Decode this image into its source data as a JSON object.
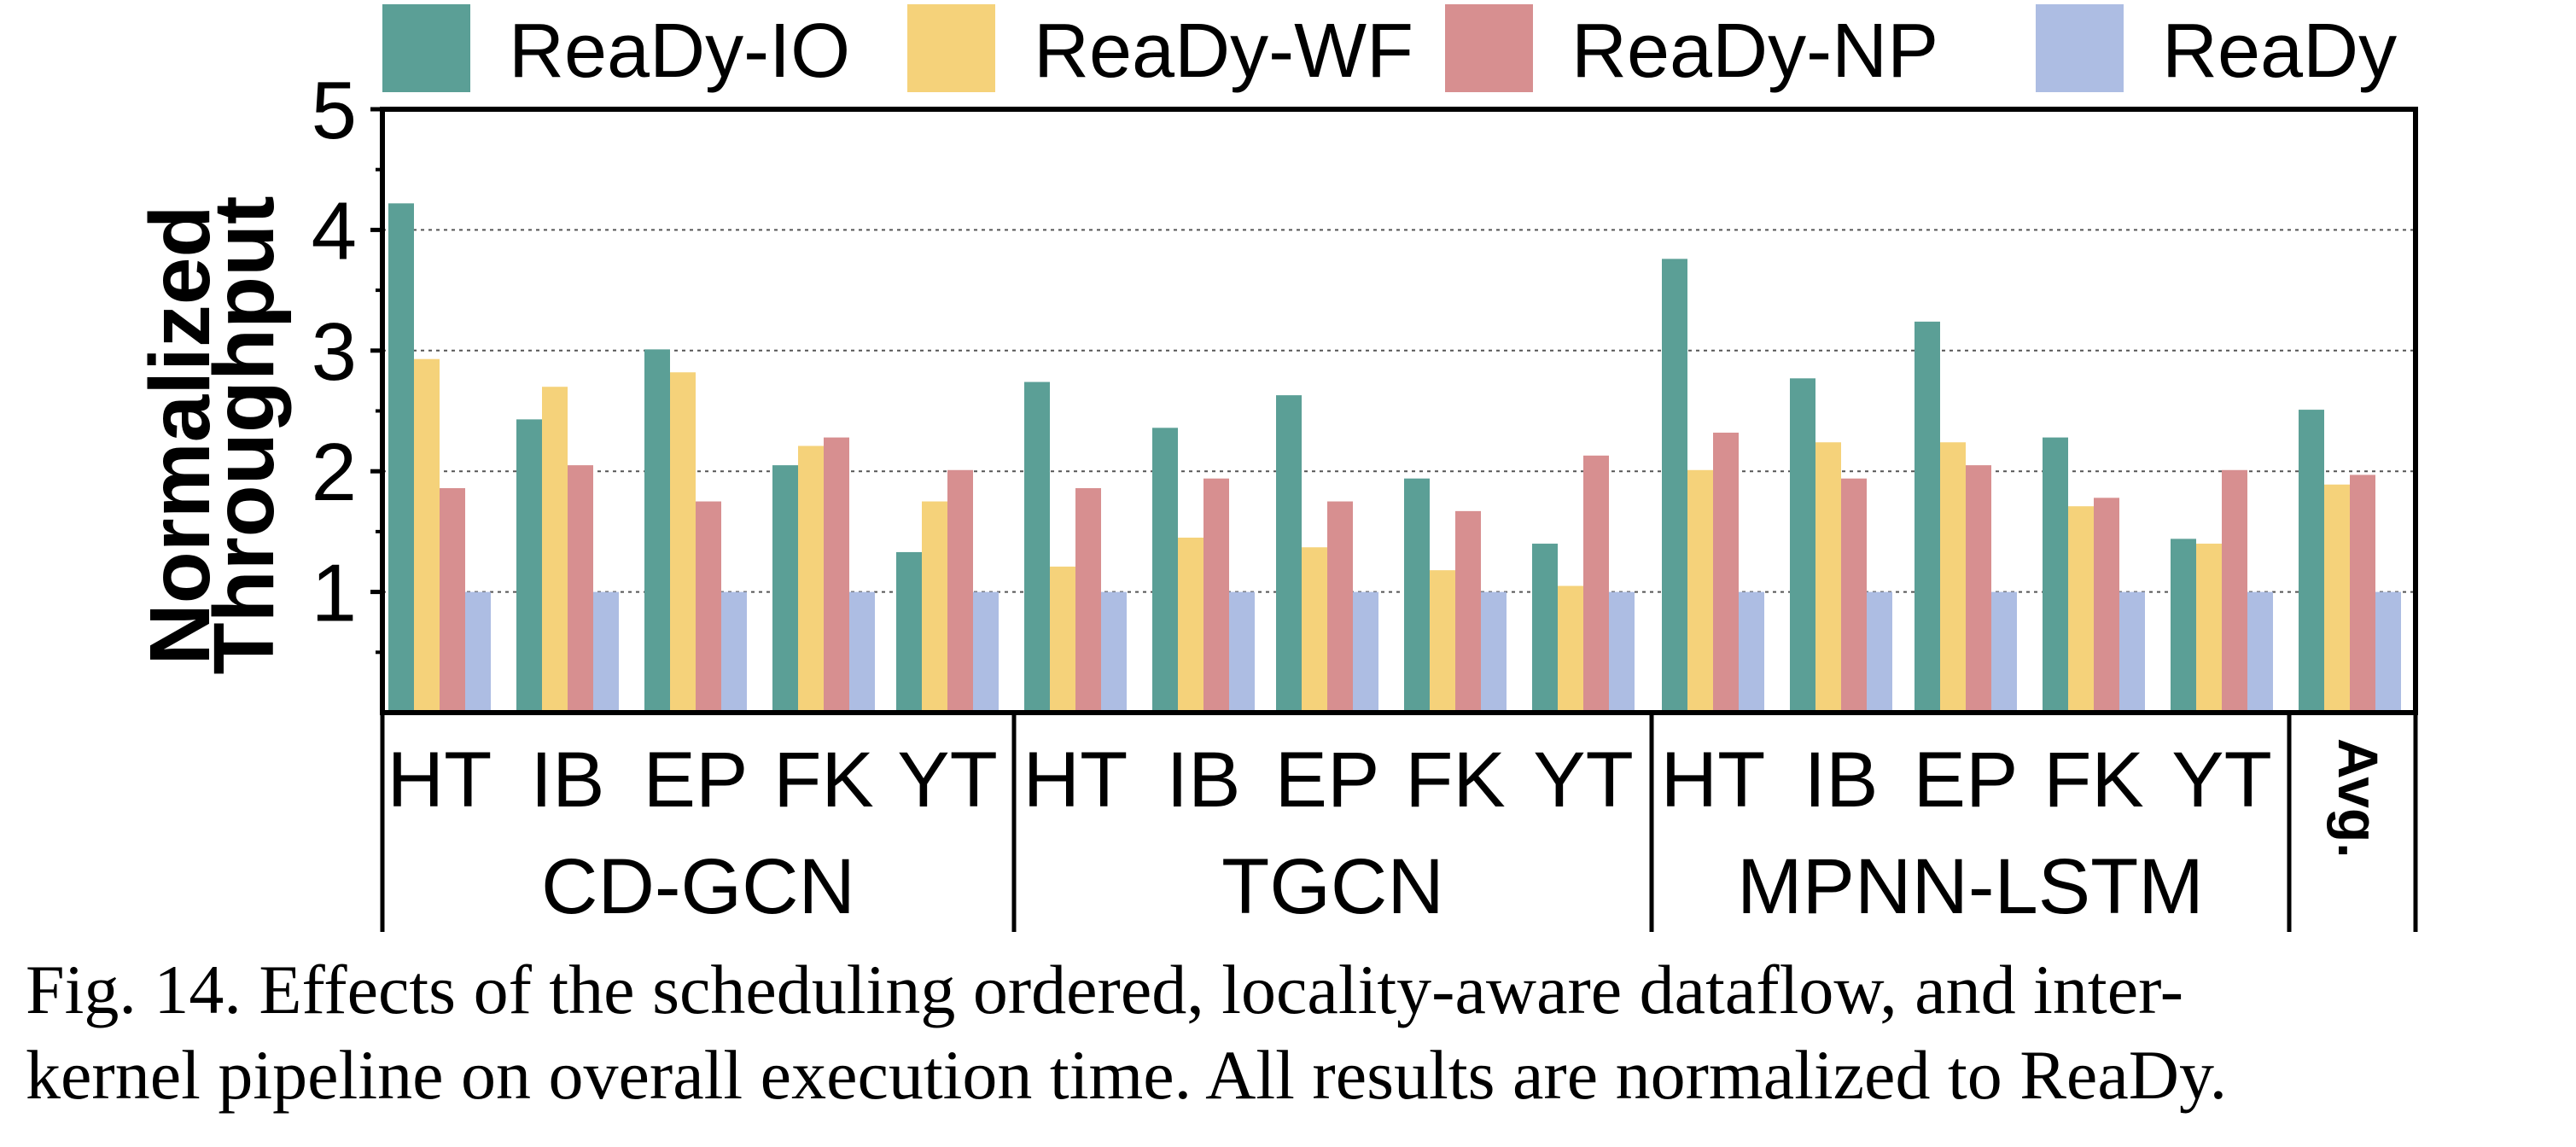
{
  "chart_data": {
    "type": "bar",
    "ylabel": [
      "Normalized",
      "Throughput"
    ],
    "ylim": [
      0,
      5
    ],
    "yticks": [
      1,
      2,
      3,
      4,
      5
    ],
    "grid": "horizontal-dotted",
    "legend_position": "top",
    "series": [
      {
        "name": "ReaDy-IO",
        "color": "#5b9f96"
      },
      {
        "name": "ReaDy-WF",
        "color": "#f5d27a"
      },
      {
        "name": "ReaDy-NP",
        "color": "#d78f90"
      },
      {
        "name": "ReaDy",
        "color": "#adbde3"
      }
    ],
    "groups": [
      {
        "name": "CD-GCN",
        "categories": [
          {
            "label": "HT",
            "values": [
              4.22,
              2.93,
              1.86,
              1.0
            ]
          },
          {
            "label": "IB",
            "values": [
              2.43,
              2.7,
              2.05,
              1.0
            ]
          },
          {
            "label": "EP",
            "values": [
              3.01,
              2.82,
              1.75,
              1.0
            ]
          },
          {
            "label": "FK",
            "values": [
              2.05,
              2.21,
              2.28,
              1.0
            ]
          },
          {
            "label": "YT",
            "values": [
              1.33,
              1.75,
              2.01,
              1.0
            ]
          }
        ]
      },
      {
        "name": "TGCN",
        "categories": [
          {
            "label": "HT",
            "values": [
              2.74,
              1.21,
              1.86,
              1.0
            ]
          },
          {
            "label": "IB",
            "values": [
              2.36,
              1.45,
              1.94,
              1.0
            ]
          },
          {
            "label": "EP",
            "values": [
              2.63,
              1.37,
              1.75,
              1.0
            ]
          },
          {
            "label": "FK",
            "values": [
              1.94,
              1.18,
              1.67,
              1.0
            ]
          },
          {
            "label": "YT",
            "values": [
              1.4,
              1.05,
              2.13,
              1.0
            ]
          }
        ]
      },
      {
        "name": "MPNN-LSTM",
        "categories": [
          {
            "label": "HT",
            "values": [
              3.76,
              2.01,
              2.32,
              1.0
            ]
          },
          {
            "label": "IB",
            "values": [
              2.77,
              2.24,
              1.94,
              1.0
            ]
          },
          {
            "label": "EP",
            "values": [
              3.24,
              2.24,
              2.05,
              1.0
            ]
          },
          {
            "label": "FK",
            "values": [
              2.28,
              1.71,
              1.78,
              1.0
            ]
          },
          {
            "label": "YT",
            "values": [
              1.44,
              1.4,
              2.01,
              1.0
            ]
          }
        ]
      }
    ],
    "average": {
      "label": "Avg.",
      "values": [
        2.51,
        1.89,
        1.97,
        1.0
      ]
    }
  },
  "caption": {
    "line1": "Fig. 14.  Effects of the scheduling ordered, locality-aware dataflow, and inter-",
    "line2": "kernel pipeline on overall execution time. All results are normalized to ReaDy."
  }
}
